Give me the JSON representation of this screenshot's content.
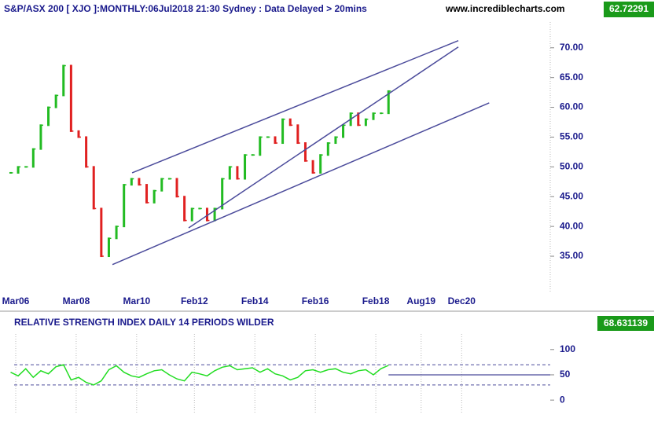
{
  "header_title": "S&P/ASX 200 [ XJO ]:MONTHLY:06Jul2018 21:30 Sydney : Data Delayed > 20mins",
  "website": "www.incrediblecharts.com",
  "chart_data": [
    {
      "type": "close-bars",
      "x": [
        2006,
        2006.25,
        2006.5,
        2006.75,
        2007,
        2007.25,
        2007.5,
        2007.75,
        2008,
        2008.25,
        2008.5,
        2008.75,
        2009,
        2009.25,
        2009.5,
        2009.75,
        2010,
        2010.25,
        2010.5,
        2010.75,
        2011,
        2011.25,
        2011.5,
        2011.75,
        2012,
        2012.25,
        2012.5,
        2012.75,
        2013,
        2013.25,
        2013.5,
        2013.75,
        2014,
        2014.25,
        2014.5,
        2014.75,
        2015,
        2015.25,
        2015.5,
        2015.75,
        2016,
        2016.25,
        2016.5,
        2016.75,
        2017,
        2017.25,
        2017.5,
        2017.75,
        2018,
        2018.25,
        2018.5
      ],
      "values": [
        49,
        50,
        50,
        53,
        57,
        60,
        62,
        67,
        56,
        55,
        50,
        43,
        35,
        38,
        40,
        47,
        48,
        47,
        44,
        46,
        48,
        48,
        45,
        41,
        43,
        43,
        41,
        43,
        48,
        50,
        48,
        52,
        52,
        55,
        55,
        54,
        58,
        57,
        54,
        51,
        49,
        52,
        54,
        55,
        57,
        59,
        57,
        58,
        59,
        59,
        62.72291
      ],
      "up_color": "#22bb22",
      "down_color": "#e02020",
      "xlim": [
        2005.65,
        2023.85
      ],
      "xticks": [
        {
          "value": 2006.17,
          "label": "Mar06"
        },
        {
          "value": 2008.17,
          "label": "Mar08"
        },
        {
          "value": 2010.17,
          "label": "Mar10"
        },
        {
          "value": 2012.08,
          "label": "Feb12"
        },
        {
          "value": 2014.08,
          "label": "Feb14"
        },
        {
          "value": 2016.08,
          "label": "Feb16"
        },
        {
          "value": 2018.08,
          "label": "Feb18"
        },
        {
          "value": 2019.58,
          "label": "Aug19"
        },
        {
          "value": 2020.92,
          "label": "Dec20"
        }
      ],
      "ylim": [
        29.2,
        76.7
      ],
      "yticks": [
        {
          "value": 35,
          "label": "35.00"
        },
        {
          "value": 40,
          "label": "40.00"
        },
        {
          "value": 45,
          "label": "45.00"
        },
        {
          "value": 50,
          "label": "50.00"
        },
        {
          "value": 55,
          "label": "55.00"
        },
        {
          "value": 60,
          "label": "60.00"
        },
        {
          "value": 65,
          "label": "65.00"
        },
        {
          "value": 70,
          "label": "70.00"
        }
      ],
      "trendlines": [
        {
          "x": [
            2010.02,
            2020.81
          ],
          "y": [
            49.0,
            71.2
          ]
        },
        {
          "x": [
            2009.37,
            2021.83
          ],
          "y": [
            33.6,
            60.75
          ]
        },
        {
          "x": [
            2011.89,
            2020.81
          ],
          "y": [
            39.75,
            70.13
          ]
        }
      ],
      "trendline_color": "#4b4b9b"
    },
    {
      "type": "line",
      "title": "RELATIVE STRENGTH INDEX DAILY 14 PERIODS WILDER",
      "values": [
        55,
        48,
        62,
        45,
        58,
        52,
        66,
        70,
        40,
        45,
        35,
        30,
        38,
        60,
        68,
        55,
        48,
        45,
        52,
        58,
        60,
        50,
        42,
        38,
        55,
        52,
        48,
        58,
        65,
        68,
        60,
        62,
        64,
        55,
        62,
        52,
        48,
        40,
        45,
        58,
        60,
        55,
        60,
        62,
        55,
        52,
        58,
        60,
        50,
        62,
        68.631139
      ],
      "color": "#22dd22",
      "ylim": [
        -20,
        123
      ],
      "yticks": [
        0,
        50,
        100
      ],
      "bands": [
        30,
        70
      ],
      "level_line": 50
    }
  ]
}
